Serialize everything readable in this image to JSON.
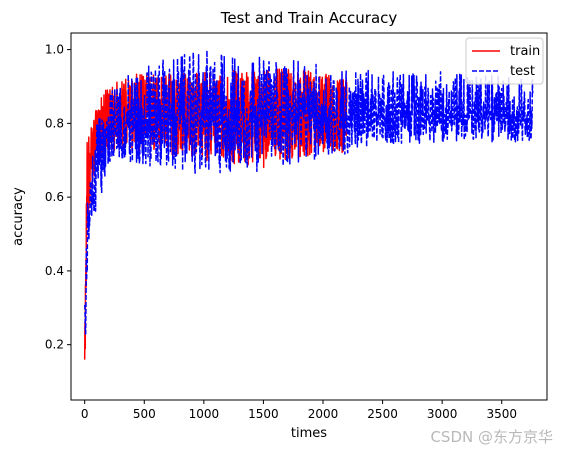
{
  "chart_data": {
    "type": "line",
    "title": "Test and Train Accuracy",
    "xlabel": "times",
    "ylabel": "accuracy",
    "xlim": [
      -115,
      3880
    ],
    "ylim": [
      0.05,
      1.045
    ],
    "xticks": [
      0,
      500,
      1000,
      1500,
      2000,
      2500,
      3000,
      3500
    ],
    "yticks": [
      0.2,
      0.4,
      0.6,
      0.8,
      1.0
    ],
    "ytick_labels": [
      "0.2",
      "0.4",
      "0.6",
      "0.8",
      "1.0"
    ],
    "grid": false,
    "legend_position": "top-right",
    "series": [
      {
        "name": "train",
        "color": "#ff0000",
        "style": "solid",
        "x_end": 2200,
        "envelope": {
          "x": [
            0,
            20,
            50,
            100,
            150,
            200,
            300,
            500,
            1000,
            1500,
            2000,
            2200
          ],
          "low": [
            0.09,
            0.45,
            0.6,
            0.68,
            0.7,
            0.72,
            0.73,
            0.72,
            0.7,
            0.68,
            0.72,
            0.72
          ],
          "high": [
            0.2,
            0.77,
            0.8,
            0.84,
            0.88,
            0.9,
            0.92,
            0.94,
            0.94,
            0.95,
            0.94,
            0.92
          ],
          "center": [
            0.15,
            0.64,
            0.72,
            0.77,
            0.8,
            0.81,
            0.82,
            0.83,
            0.83,
            0.83,
            0.83,
            0.82
          ]
        }
      },
      {
        "name": "test",
        "color": "#0000ff",
        "style": "dashed",
        "x_end": 3760,
        "envelope": {
          "x": [
            0,
            20,
            50,
            100,
            150,
            200,
            300,
            500,
            1000,
            1500,
            2000,
            2500,
            3000,
            3500,
            3760
          ],
          "low": [
            0.15,
            0.3,
            0.45,
            0.55,
            0.62,
            0.66,
            0.7,
            0.68,
            0.66,
            0.67,
            0.7,
            0.74,
            0.75,
            0.75,
            0.75
          ],
          "high": [
            0.35,
            0.6,
            0.72,
            0.8,
            0.84,
            0.88,
            0.92,
            0.96,
            1.0,
            0.98,
            0.96,
            0.94,
            0.94,
            0.93,
            0.92
          ],
          "center": [
            0.25,
            0.48,
            0.62,
            0.71,
            0.75,
            0.78,
            0.8,
            0.81,
            0.82,
            0.82,
            0.82,
            0.82,
            0.82,
            0.82,
            0.82
          ]
        }
      }
    ]
  },
  "watermark": "CSDN @东方京华"
}
